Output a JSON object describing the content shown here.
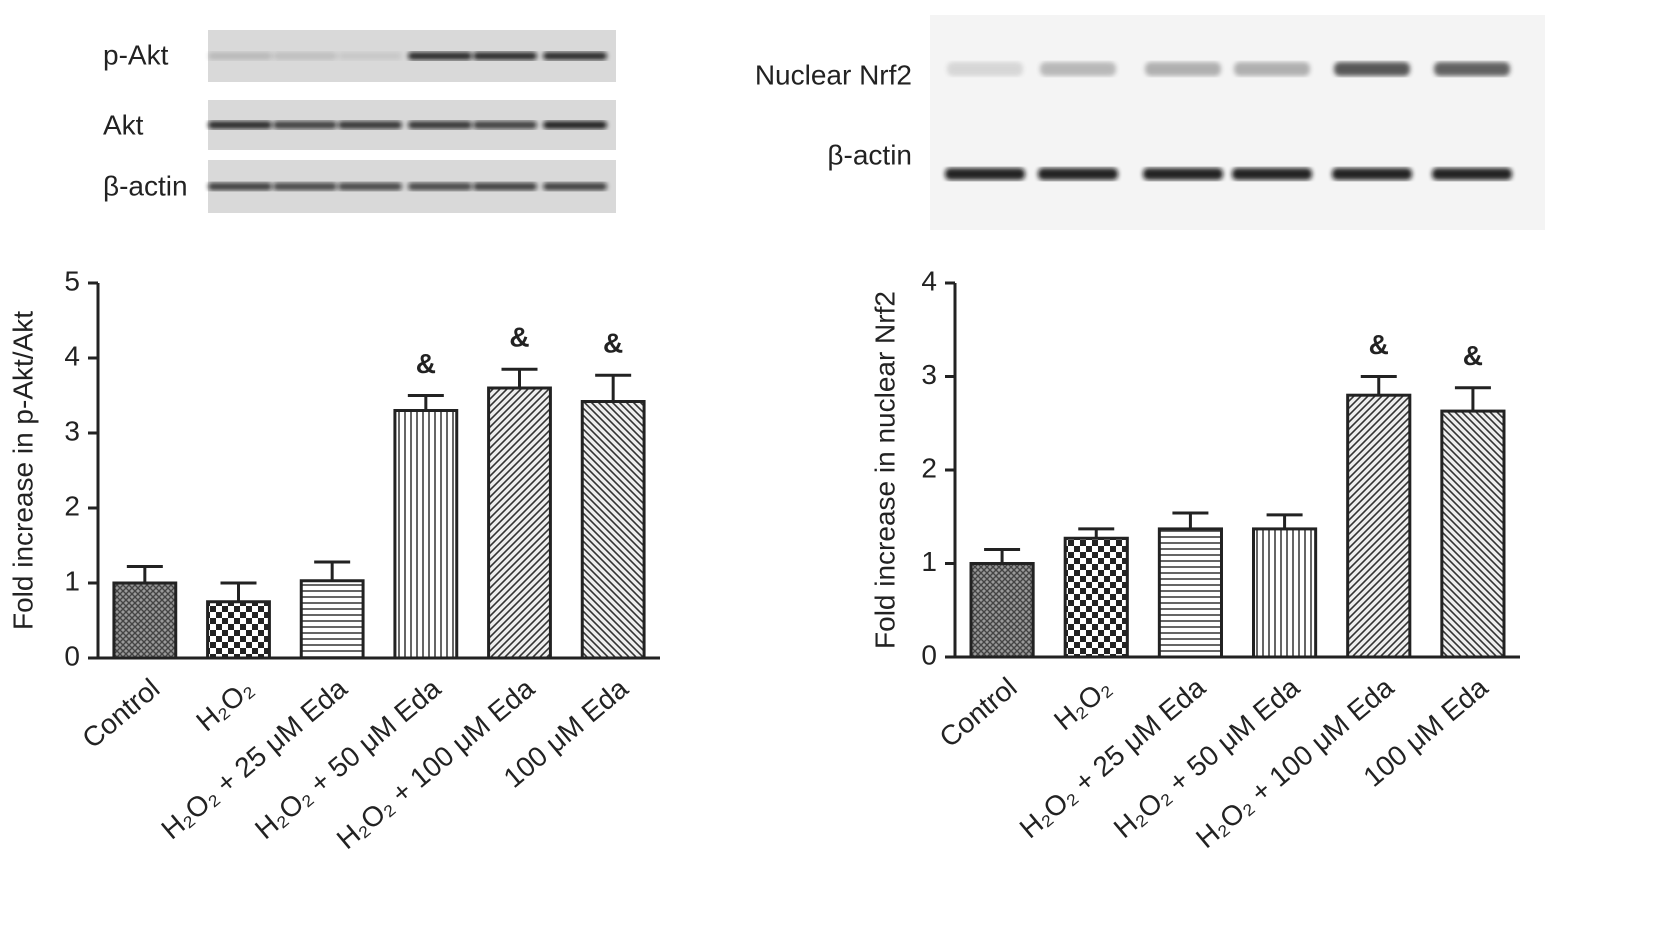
{
  "chart_data": [
    {
      "type": "bar",
      "blot_labels": [
        "p-Akt",
        "Akt",
        "β-actin"
      ],
      "ylabel": "Fold increase in p-Akt/Akt",
      "categories": [
        "Control",
        "H₂O₂",
        "H₂O₂ + 25 μM Eda",
        "H₂O₂ + 50 μM Eda",
        "H₂O₂ + 100 μM Eda",
        "100 μM Eda"
      ],
      "values": [
        1.0,
        0.75,
        1.03,
        3.3,
        3.6,
        3.42
      ],
      "errors": [
        0.22,
        0.25,
        0.25,
        0.2,
        0.25,
        0.35
      ],
      "annotations": [
        null,
        null,
        null,
        "&",
        "&",
        "&"
      ],
      "patterns": [
        "crosshatch",
        "checker",
        "hlines",
        "vlines",
        "diag",
        "backdiag"
      ],
      "ylim": [
        0,
        5
      ],
      "yticks": [
        0,
        1,
        2,
        3,
        4,
        5
      ],
      "color": "#222222"
    },
    {
      "type": "bar",
      "blot_labels": [
        "Nuclear Nrf2",
        "β-actin"
      ],
      "ylabel": "Fold increase in nuclear Nrf2",
      "categories": [
        "Control",
        "H₂O₂",
        "H₂O₂ + 25 μM Eda",
        "H₂O₂ + 50 μM Eda",
        "H₂O₂ + 100 μM Eda",
        "100 μM Eda"
      ],
      "values": [
        1.0,
        1.27,
        1.37,
        1.37,
        2.8,
        2.63
      ],
      "errors": [
        0.15,
        0.1,
        0.17,
        0.15,
        0.2,
        0.25
      ],
      "annotations": [
        null,
        null,
        null,
        null,
        "&",
        "&"
      ],
      "patterns": [
        "crosshatch",
        "checker",
        "hlines",
        "vlines",
        "diag",
        "backdiag"
      ],
      "ylim": [
        0,
        4
      ],
      "yticks": [
        0,
        1,
        2,
        3,
        4
      ],
      "color": "#222222"
    }
  ]
}
